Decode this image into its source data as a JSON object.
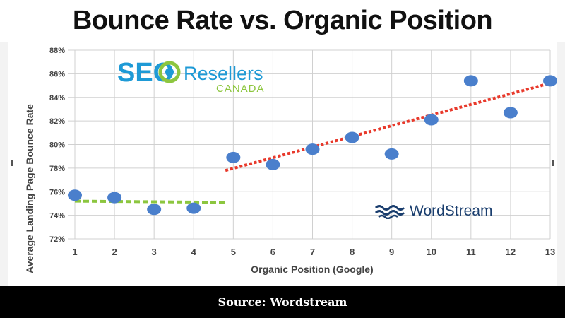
{
  "title": "Bounce Rate vs. Organic Position",
  "footer": "Source: Wordstream",
  "logos": {
    "seo_resellers": {
      "word1": "SEO",
      "word2": "Resellers",
      "word3": "CANADA"
    },
    "wordstream": {
      "text": "WordStream"
    }
  },
  "colors": {
    "points": "#4a7fcc",
    "trend_left": "#8cc63f",
    "trend_right": "#e8392b",
    "grid": "#d0d0d0",
    "seo_blue": "#1e9ad6",
    "seo_green": "#8dc63f",
    "wordstream_navy": "#1a3e6e"
  },
  "chart_data": {
    "type": "scatter",
    "xlabel": "Organic Position (Google)",
    "ylabel": "Average Landing Page Bounce Rate",
    "x_ticks": [
      "1",
      "2",
      "3",
      "4",
      "5",
      "6",
      "7",
      "8",
      "9",
      "10",
      "11",
      "12",
      "13"
    ],
    "y_ticks": [
      "72%",
      "74%",
      "76%",
      "78%",
      "80%",
      "82%",
      "84%",
      "86%",
      "88%"
    ],
    "xlim": [
      1,
      13
    ],
    "ylim": [
      72,
      88
    ],
    "grid": true,
    "points": [
      {
        "x": 1,
        "y": 75.7
      },
      {
        "x": 2,
        "y": 75.5
      },
      {
        "x": 3,
        "y": 74.5
      },
      {
        "x": 4,
        "y": 74.6
      },
      {
        "x": 5,
        "y": 78.9
      },
      {
        "x": 6,
        "y": 78.3
      },
      {
        "x": 7,
        "y": 79.6
      },
      {
        "x": 8,
        "y": 80.6
      },
      {
        "x": 9,
        "y": 79.2
      },
      {
        "x": 10,
        "y": 82.1
      },
      {
        "x": 11,
        "y": 85.4
      },
      {
        "x": 12,
        "y": 82.7
      },
      {
        "x": 13,
        "y": 85.4
      }
    ],
    "trendlines": [
      {
        "x": [
          1,
          4.8
        ],
        "y": [
          75.2,
          75.1
        ],
        "style": "dashed",
        "color": "#8cc63f"
      },
      {
        "x": [
          4.8,
          13
        ],
        "y": [
          77.8,
          85.2
        ],
        "style": "dotted",
        "color": "#e8392b"
      }
    ]
  }
}
